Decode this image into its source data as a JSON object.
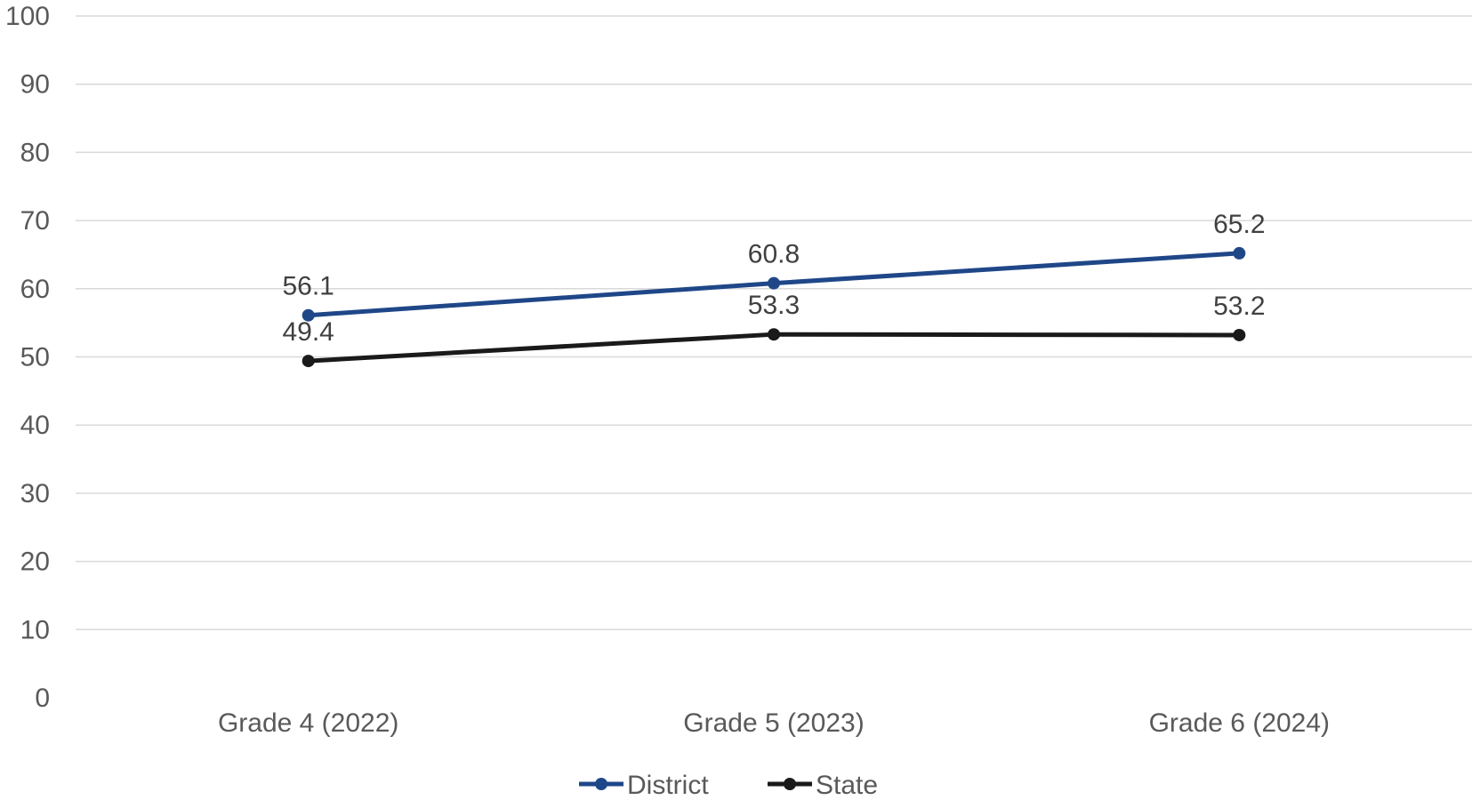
{
  "chart_data": {
    "type": "line",
    "title": "",
    "xlabel": "",
    "ylabel": "",
    "categories": [
      "Grade 4 (2022)",
      "Grade 5 (2023)",
      "Grade 6 (2024)"
    ],
    "ylim": [
      0,
      100
    ],
    "yticks": [
      0,
      10,
      20,
      30,
      40,
      50,
      60,
      70,
      80,
      90,
      100
    ],
    "grid": true,
    "legend_position": "bottom",
    "data_labels": true,
    "series": [
      {
        "name": "District",
        "values": [
          56.1,
          60.8,
          65.2
        ],
        "color": "#1f4788"
      },
      {
        "name": "State",
        "values": [
          49.4,
          53.3,
          53.2
        ],
        "color": "#1a1a1a"
      }
    ]
  }
}
